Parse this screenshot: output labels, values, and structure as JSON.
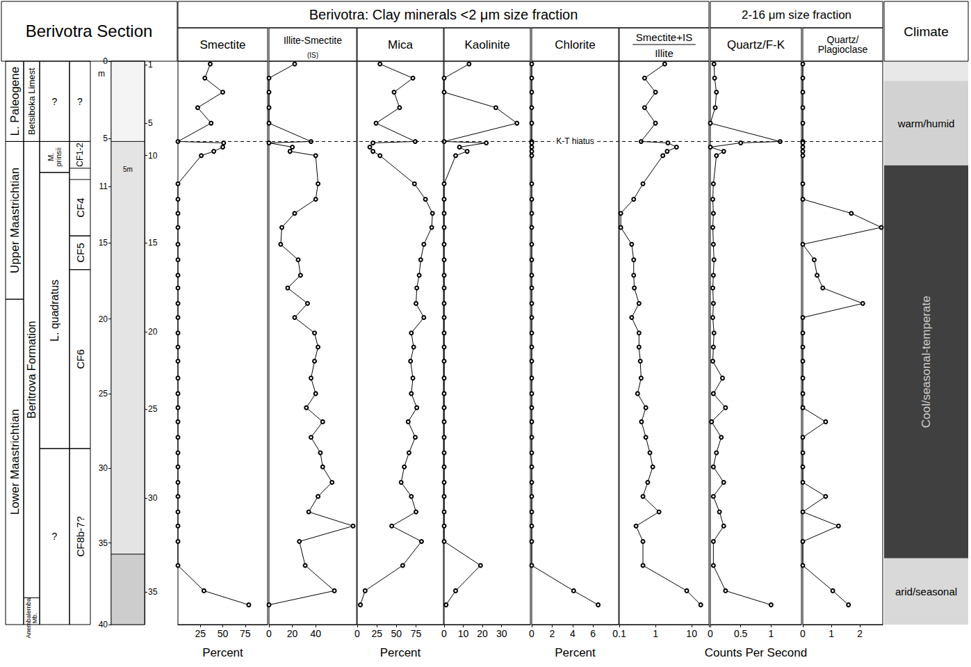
{
  "section_title": "Berivotra Section",
  "strat_columns": [
    {
      "zones": [
        {
          "label": "L. Paleogene",
          "from": 0,
          "to": 5.7
        },
        {
          "label": "Upper Maastrichtian",
          "from": 5.7,
          "to": 16.9
        },
        {
          "label": "Lower Maastrichtian",
          "from": 16.9,
          "to": 40
        }
      ]
    },
    {
      "zones": [
        {
          "label": "Betsiboka Limest",
          "from": 0,
          "to": 5.7
        },
        {
          "label": "Beritrova Formation",
          "from": 5.7,
          "to": 38.1
        },
        {
          "label": "Anembalemba Mb.",
          "from": 38.1,
          "to": 40
        }
      ]
    },
    {
      "zones": [
        {
          "label": "?",
          "from": 0,
          "to": 5.7
        },
        {
          "label": "M. prinsii",
          "from": 5.7,
          "to": 7.9
        },
        {
          "label": "L. quadratus",
          "from": 7.9,
          "to": 27.5
        },
        {
          "label": "?",
          "from": 27.5,
          "to": 40
        }
      ]
    },
    {
      "zones": [
        {
          "label": "?",
          "from": 0,
          "to": 5.7
        },
        {
          "label": "CF1-2",
          "from": 5.7,
          "to": 7.6
        },
        {
          "label": "CF4",
          "from": 8.4,
          "to": 12.4
        },
        {
          "label": "CF5",
          "from": 12.4,
          "to": 14.8
        },
        {
          "label": "CF6",
          "from": 14.8,
          "to": 27.5
        },
        {
          "label": "CF8b-7?",
          "from": 27.5,
          "to": 40
        }
      ]
    }
  ],
  "lithology": {
    "ylim": [
      40,
      0
    ],
    "ylabel": "m",
    "yticks": [
      0,
      {
        "value": 5.5,
        "label": "5"
      },
      {
        "value": 8.9,
        "label": "11"
      },
      {
        "value": 12.9,
        "label": "15"
      },
      {
        "value": 18.3,
        "label": "20"
      },
      {
        "value": 23.6,
        "label": "25"
      },
      {
        "value": 28.9,
        "label": "30"
      },
      {
        "value": 34.2,
        "label": "35"
      },
      40
    ],
    "y2ticks": [
      {
        "value": 0.25,
        "label": "1"
      },
      {
        "value": 4.4,
        "label": "5"
      },
      {
        "value": 6.7,
        "label": "10"
      },
      {
        "value": 12.9,
        "label": "15"
      },
      {
        "value": 19.2,
        "label": "20"
      },
      {
        "value": 24.7,
        "label": "25"
      },
      {
        "value": 31,
        "label": "30"
      },
      {
        "value": 37.7,
        "label": "35"
      }
    ],
    "units": [
      {
        "from": 0,
        "to": 5.7,
        "color": "#f4f4f4"
      },
      {
        "from": 5.7,
        "to": 35,
        "color": "#e4e4e4"
      },
      {
        "from": 35,
        "to": 40,
        "color": "#cdcdcd"
      }
    ],
    "annotations": [
      {
        "text": "5m",
        "y": 7.7
      }
    ]
  },
  "hiatus": {
    "label": "K-T hiatus",
    "depth": 5.7
  },
  "chart_data": [
    {
      "type": "line",
      "group": "Berivotra: Clay minerals <2 μm size fraction",
      "title": "Smectite",
      "xlabel": "Percent",
      "x": [
        36,
        30,
        50,
        22,
        37,
        0,
        51,
        50,
        40,
        26,
        0,
        0,
        0,
        0,
        0,
        0,
        0,
        0,
        0,
        0,
        0,
        0,
        0,
        0,
        0,
        0,
        0,
        0,
        0,
        0,
        0,
        0,
        0,
        0,
        0,
        0,
        29,
        79
      ],
      "y": [
        0.2,
        1.2,
        2.2,
        3.3,
        4.4,
        5.7,
        5.8,
        6.1,
        6.4,
        6.7,
        8.7,
        9.8,
        10.8,
        11.8,
        13,
        14.1,
        15.2,
        16.1,
        17.2,
        18.2,
        19.3,
        20.3,
        21.3,
        22.5,
        23.6,
        24.6,
        25.6,
        26.7,
        27.8,
        28.8,
        29.9,
        30.9,
        32,
        33,
        34.1,
        35.8,
        37.6,
        38.6
      ],
      "xlim": [
        0,
        100
      ],
      "xticks": [
        25,
        50,
        75
      ],
      "ylim": [
        40,
        0
      ],
      "tick_labels": "x",
      "grid": false,
      "color": "#000000",
      "marker": "open_circle",
      "line_style": "solid"
    },
    {
      "type": "line",
      "group": "Berivotra: Clay minerals <2 μm size fraction",
      "title": "Illite-Smectite",
      "subtitle": "(IS)",
      "x": [
        22,
        0,
        0,
        0,
        0,
        36,
        0,
        20,
        18,
        40,
        42,
        40,
        22,
        11,
        10,
        25,
        27,
        16,
        33,
        22,
        39,
        42,
        39,
        36,
        40,
        32,
        46,
        36,
        44,
        46,
        54,
        42,
        34,
        72,
        26,
        31,
        56,
        0
      ],
      "y": [
        0.2,
        1.2,
        2.2,
        3.3,
        4.4,
        5.7,
        5.8,
        6.1,
        6.4,
        6.7,
        8.7,
        9.8,
        10.8,
        11.8,
        13,
        14.1,
        15.2,
        16.1,
        17.2,
        18.2,
        19.3,
        20.3,
        21.3,
        22.5,
        23.6,
        24.6,
        25.6,
        26.7,
        27.8,
        28.8,
        29.9,
        30.9,
        32,
        33,
        34.1,
        35.8,
        37.6,
        38.6
      ],
      "xlim": [
        0,
        75
      ],
      "xticks": [
        0,
        20,
        40
      ],
      "ylim": [
        40,
        0
      ],
      "tick_labels": "x",
      "grid": false,
      "color": "#000000",
      "marker": "open_circle",
      "line_style": "solid"
    },
    {
      "type": "line",
      "group": "Berivotra: Clay minerals <2 μm size fraction",
      "title": "Mica",
      "xlabel": "Percent",
      "x": [
        29,
        71,
        47,
        54,
        24,
        74,
        20,
        16,
        20,
        29,
        73,
        87,
        96,
        95,
        85,
        81,
        79,
        76,
        75,
        85,
        69,
        72,
        68,
        71,
        69,
        76,
        65,
        74,
        66,
        60,
        56,
        69,
        75,
        44,
        82,
        58,
        10,
        4
      ],
      "y": [
        0.2,
        1.2,
        2.2,
        3.3,
        4.4,
        5.7,
        5.8,
        6.1,
        6.4,
        6.7,
        8.7,
        9.8,
        10.8,
        11.8,
        13,
        14.1,
        15.2,
        16.1,
        17.2,
        18.2,
        19.3,
        20.3,
        21.3,
        22.5,
        23.6,
        24.6,
        25.6,
        26.7,
        27.8,
        28.8,
        29.9,
        30.9,
        32,
        33,
        34.1,
        35.8,
        37.6,
        38.6
      ],
      "xlim": [
        0,
        110
      ],
      "xticks": [
        0,
        25,
        50,
        75
      ],
      "ylim": [
        40,
        0
      ],
      "tick_labels": "x",
      "grid": false,
      "color": "#000000",
      "marker": "open_circle",
      "line_style": "solid"
    },
    {
      "type": "line",
      "group": "Berivotra: Clay minerals <2 μm size fraction",
      "title": "Kaolinite",
      "x": [
        13,
        0,
        0,
        27,
        38,
        0,
        22,
        8,
        12,
        6,
        0,
        0,
        0,
        0,
        0,
        0,
        0,
        0,
        0,
        0,
        0,
        0,
        0,
        0,
        0,
        0,
        0,
        0,
        0,
        0,
        0,
        0,
        0,
        0,
        0,
        19,
        6,
        1
      ],
      "y": [
        0.2,
        1.2,
        2.2,
        3.3,
        4.4,
        5.7,
        5.8,
        6.1,
        6.4,
        6.7,
        8.7,
        9.8,
        10.8,
        11.8,
        13,
        14.1,
        15.2,
        16.1,
        17.2,
        18.2,
        19.3,
        20.3,
        21.3,
        22.5,
        23.6,
        24.6,
        25.6,
        26.7,
        27.8,
        28.8,
        29.9,
        30.9,
        32,
        33,
        34.1,
        35.8,
        37.6,
        38.6
      ],
      "xlim": [
        0,
        45
      ],
      "xticks": [
        0,
        10,
        20,
        30
      ],
      "ylim": [
        40,
        0
      ],
      "tick_labels": "x",
      "grid": false,
      "color": "#000000",
      "marker": "open_circle",
      "line_style": "solid"
    },
    {
      "type": "line",
      "group": "Berivotra: Clay minerals <2 μm size fraction",
      "title": "Chlorite",
      "xlabel": "Percent",
      "x": [
        0,
        0,
        0,
        0,
        0,
        0,
        0,
        0,
        0,
        0,
        0,
        0,
        0,
        0,
        0,
        0,
        0,
        0,
        0,
        0,
        0,
        0,
        0,
        0,
        0,
        0,
        0,
        0,
        0,
        0,
        0,
        0,
        0,
        0,
        0,
        0,
        4.1,
        6.5
      ],
      "y": [
        0.2,
        1.2,
        2.2,
        3.3,
        4.4,
        5.7,
        5.8,
        6.1,
        6.4,
        6.7,
        8.7,
        9.8,
        10.8,
        11.8,
        13,
        14.1,
        15.2,
        16.1,
        17.2,
        18.2,
        19.3,
        20.3,
        21.3,
        22.5,
        23.6,
        24.6,
        25.6,
        26.7,
        27.8,
        28.8,
        29.9,
        30.9,
        32,
        33,
        34.1,
        35.8,
        37.6,
        38.6
      ],
      "xlim": [
        0,
        8.5
      ],
      "xticks": [
        0,
        2,
        4,
        6
      ],
      "ylim": [
        40,
        0
      ],
      "tick_labels": "x",
      "grid": false,
      "color": "#000000",
      "marker": "open_circle",
      "line_style": "solid"
    },
    {
      "type": "line",
      "group": "Berivotra: Clay minerals <2 μm size fraction",
      "title": "Smectite+IS",
      "subtitle": "Illite",
      "log": "x",
      "x": [
        1.8,
        0.5,
        1,
        0.5,
        1,
        0.4,
        2.2,
        3.8,
        2.1,
        1.6,
        0.45,
        0.25,
        0.11,
        0.11,
        0.22,
        0.25,
        0.25,
        0.26,
        0.35,
        0.22,
        0.35,
        0.35,
        0.38,
        0.4,
        0.32,
        0.54,
        0.41,
        0.54,
        0.7,
        0.84,
        0.61,
        0.45,
        1.25,
        0.29,
        0.45,
        0.45,
        7.3,
        17.8
      ],
      "y": [
        0.2,
        1.2,
        2.2,
        3.3,
        4.4,
        5.7,
        5.8,
        6.1,
        6.4,
        6.7,
        8.7,
        9.8,
        10.8,
        11.8,
        13,
        14.1,
        15.2,
        16.1,
        17.2,
        18.2,
        19.3,
        20.3,
        21.3,
        22.5,
        23.6,
        24.6,
        25.6,
        26.7,
        27.8,
        28.8,
        29.9,
        30.9,
        32,
        33,
        34.1,
        35.8,
        37.6,
        38.6
      ],
      "xlim": [
        0.1,
        30
      ],
      "xticks": [
        0.1,
        1,
        10
      ],
      "ylim": [
        40,
        0
      ],
      "tick_labels": "x",
      "grid": false,
      "color": "#000000",
      "marker": "open_circle",
      "line_style": "solid"
    },
    {
      "type": "line",
      "group": "2-16 μm size fraction",
      "title": "Quartz/F-K",
      "xlabel": "Counts Per Second",
      "x": [
        0.06,
        0.07,
        0.1,
        0.08,
        0,
        1.15,
        0.5,
        0,
        0.22,
        0.1,
        0.05,
        0.04,
        0.05,
        0.04,
        0.05,
        0.06,
        0.05,
        0.04,
        0.05,
        0.04,
        0.06,
        0.05,
        0.04,
        0.2,
        0.05,
        0.25,
        0.02,
        0.18,
        0.1,
        0.05,
        0.22,
        0.05,
        0.15,
        0.22,
        0.05,
        0.05,
        0.25,
        1
      ],
      "y": [
        0.2,
        1.2,
        2.2,
        3.3,
        4.4,
        5.7,
        5.8,
        6.1,
        6.4,
        6.7,
        8.7,
        9.8,
        10.8,
        11.8,
        13,
        14.1,
        15.2,
        16.1,
        17.2,
        18.2,
        19.3,
        20.3,
        21.3,
        22.5,
        23.6,
        24.6,
        25.6,
        26.7,
        27.8,
        28.8,
        29.9,
        30.9,
        32,
        33,
        34.1,
        35.8,
        37.6,
        38.6
      ],
      "xlim": [
        0,
        1.5
      ],
      "xticks": [
        0,
        0.5,
        1
      ],
      "ylim": [
        40,
        0
      ],
      "tick_labels": "x",
      "grid": false,
      "color": "#000000",
      "marker": "open_circle",
      "line_style": "solid"
    },
    {
      "type": "line",
      "group": "2-16 μm size fraction",
      "title": "Quartz/Plagioclase",
      "x": [
        0,
        0,
        0,
        0,
        0,
        0,
        0,
        0,
        0,
        0,
        0,
        0,
        1.7,
        2.75,
        0,
        0.4,
        0.5,
        0.7,
        2.1,
        0,
        0,
        0,
        0,
        0,
        0,
        0,
        0.8,
        0,
        0,
        0,
        0,
        0.8,
        0,
        1.25,
        0,
        0,
        1.05,
        1.6
      ],
      "y": [
        0.2,
        1.2,
        2.2,
        3.3,
        4.4,
        5.7,
        5.8,
        6.1,
        6.4,
        6.7,
        8.7,
        9.8,
        10.8,
        11.8,
        13,
        14.1,
        15.2,
        16.1,
        17.2,
        18.2,
        19.3,
        20.3,
        21.3,
        22.5,
        23.6,
        24.6,
        25.6,
        26.7,
        27.8,
        28.8,
        29.9,
        30.9,
        32,
        33,
        34.1,
        35.8,
        37.6,
        38.6
      ],
      "xlim": [
        0,
        2.8
      ],
      "xticks": [
        0,
        1,
        2
      ],
      "ylim": [
        40,
        0
      ],
      "tick_labels": "x",
      "grid": false,
      "color": "#000000",
      "marker": "open_circle",
      "line_style": "solid"
    }
  ],
  "climate": {
    "title": "Climate",
    "ylim": [
      40,
      0
    ],
    "bands": [
      {
        "from": 0,
        "to": 1.4,
        "color": "#e8e8e8"
      },
      {
        "from": 1.4,
        "to": 7.4,
        "color": "#d2d2d2",
        "label": "warm/humid"
      },
      {
        "from": 7.4,
        "to": 35.3,
        "color": "#404040",
        "label": "Cool/seasonal-temperate"
      },
      {
        "from": 35.3,
        "to": 40,
        "color": "#d9d9d9",
        "label": "arid/seasonal"
      }
    ]
  }
}
